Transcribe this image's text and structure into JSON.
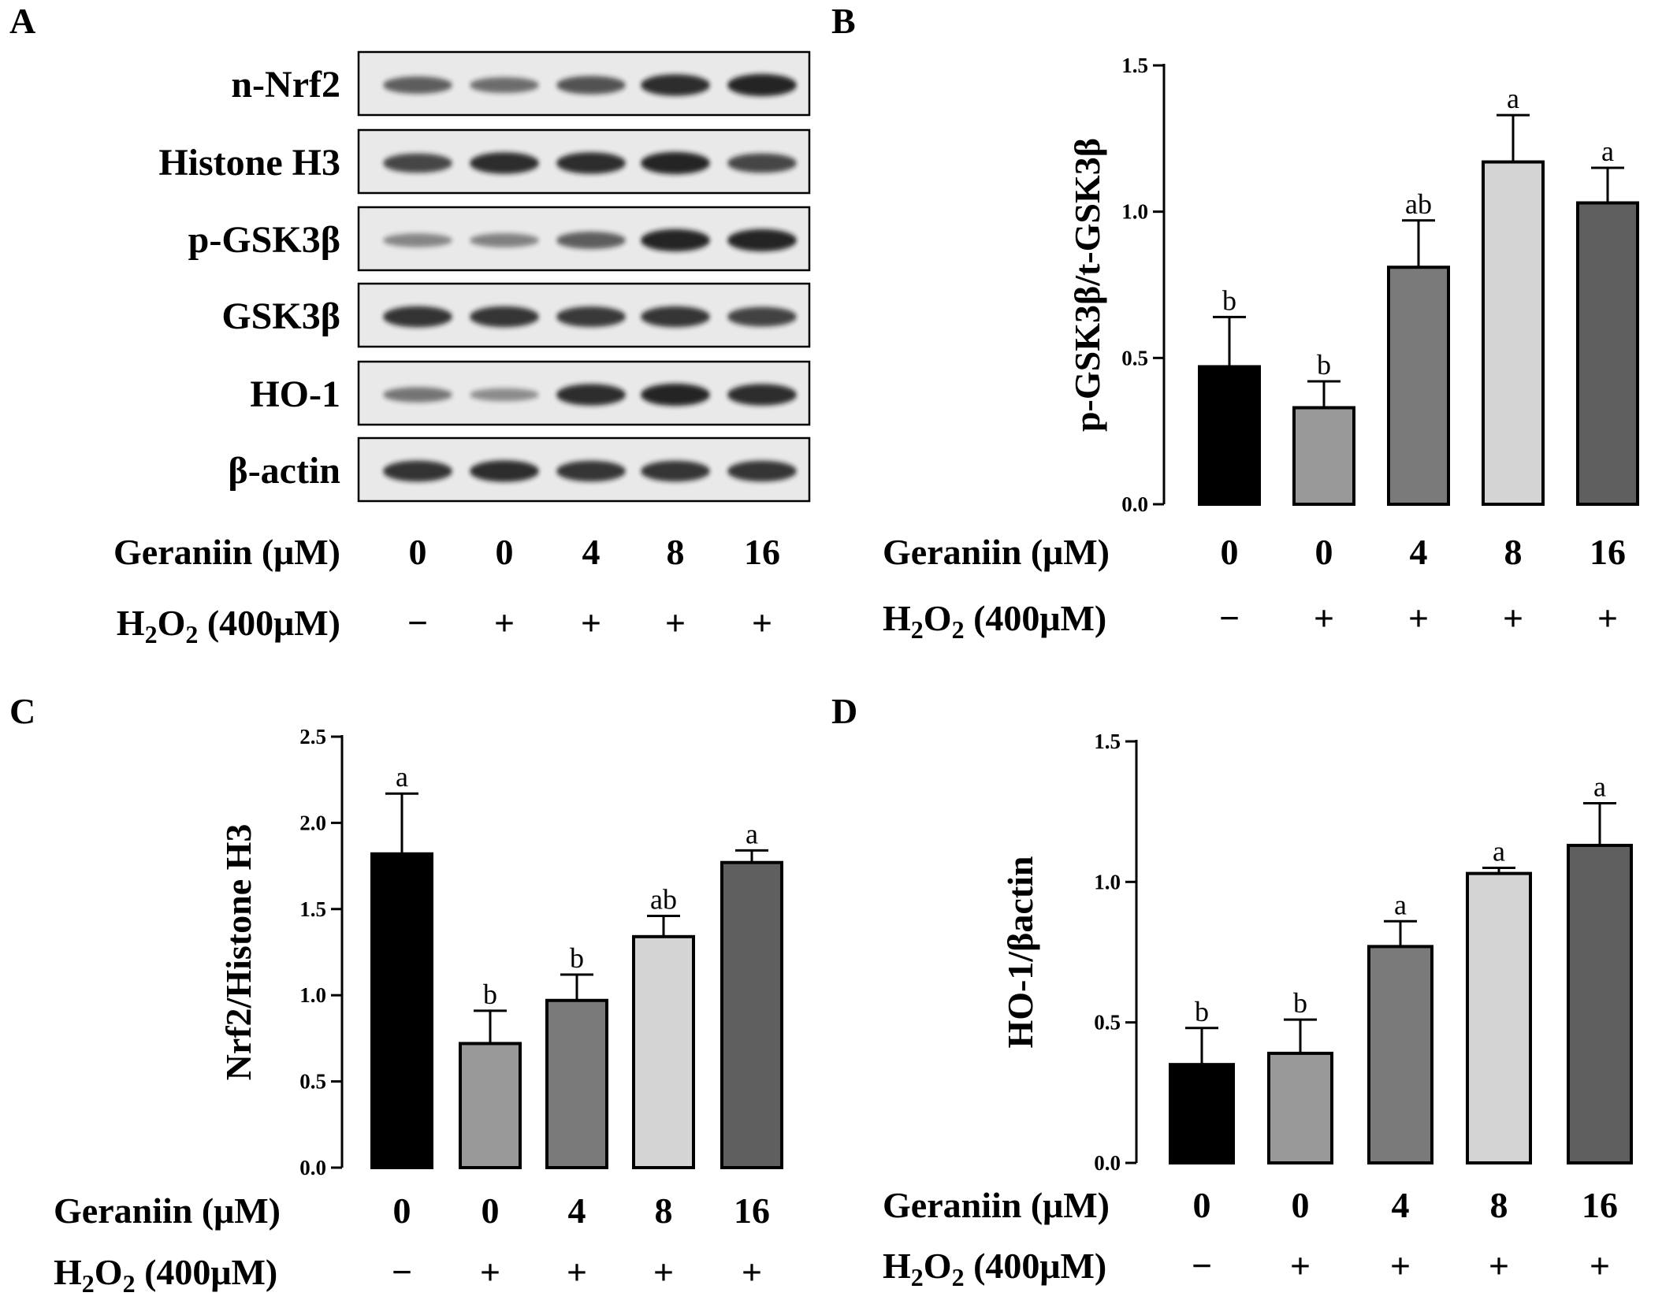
{
  "colors": {
    "bar_fills": [
      "#000000",
      "#999999",
      "#7a7a7a",
      "#d4d4d4",
      "#5f5f5f"
    ],
    "bar_stroke": "#000000",
    "blot_background": "#e9e9e9",
    "band": "#141414"
  },
  "panel_a": {
    "letter": "A",
    "bands": [
      "n-Nrf2",
      "Histone H3",
      "p-GSK3β",
      "GSK3β",
      "HO-1",
      "β-actin"
    ],
    "band_intensities": [
      [
        0.55,
        0.45,
        0.62,
        0.85,
        0.9
      ],
      [
        0.7,
        0.85,
        0.85,
        0.9,
        0.7
      ],
      [
        0.3,
        0.32,
        0.55,
        0.9,
        0.9
      ],
      [
        0.82,
        0.8,
        0.78,
        0.8,
        0.72
      ],
      [
        0.4,
        0.25,
        0.85,
        0.9,
        0.85
      ],
      [
        0.82,
        0.85,
        0.8,
        0.8,
        0.8
      ]
    ],
    "geraniin_label": "Geraniin (μM)",
    "h2o2_label": "H",
    "h2o2_sub1": "2",
    "h2o2_o": "O",
    "h2o2_sub2": "2",
    "h2o2_tail": " (400μM)",
    "geraniin_values": [
      "0",
      "0",
      "4",
      "8",
      "16"
    ],
    "h2o2_values": [
      "−",
      "+",
      "+",
      "+",
      "+"
    ]
  },
  "chart_data": [
    {
      "panel": "B",
      "type": "bar",
      "title": "",
      "ylabel": "p-GSK3β/t-GSK3β",
      "ylim": [
        0,
        1.5
      ],
      "yticks": [
        "0.0",
        "0.5",
        "1.0",
        "1.5"
      ],
      "values": [
        0.47,
        0.33,
        0.81,
        1.17,
        1.03
      ],
      "errors": [
        0.17,
        0.09,
        0.16,
        0.16,
        0.12
      ],
      "significance": [
        "b",
        "b",
        "ab",
        "a",
        "a"
      ],
      "geraniin_label": "Geraniin (μM)",
      "geraniin_values": [
        "0",
        "0",
        "4",
        "8",
        "16"
      ],
      "h2o2_label": "H",
      "h2o2_sub1": "2",
      "h2o2_o": "O",
      "h2o2_sub2": "2",
      "h2o2_tail": " (400μM)",
      "h2o2_values": [
        "−",
        "+",
        "+",
        "+",
        "+"
      ]
    },
    {
      "panel": "C",
      "type": "bar",
      "title": "",
      "ylabel": "Nrf2/Histone H3",
      "ylim": [
        0,
        2.5
      ],
      "yticks": [
        "0.0",
        "0.5",
        "1.0",
        "1.5",
        "2.0",
        "2.5"
      ],
      "values": [
        1.82,
        0.72,
        0.97,
        1.34,
        1.77
      ],
      "errors": [
        0.35,
        0.19,
        0.15,
        0.12,
        0.07
      ],
      "significance": [
        "a",
        "b",
        "b",
        "ab",
        "a"
      ],
      "geraniin_label": "Geraniin (μM)",
      "geraniin_values": [
        "0",
        "0",
        "4",
        "8",
        "16"
      ],
      "h2o2_label": "H",
      "h2o2_sub1": "2",
      "h2o2_o": "O",
      "h2o2_sub2": "2",
      "h2o2_tail": " (400μM)",
      "h2o2_values": [
        "−",
        "+",
        "+",
        "+",
        "+"
      ]
    },
    {
      "panel": "D",
      "type": "bar",
      "title": "",
      "ylabel": "HO-1/βactin",
      "ylim": [
        0,
        1.5
      ],
      "yticks": [
        "0.0",
        "0.5",
        "1.0",
        "1.5"
      ],
      "values": [
        0.35,
        0.39,
        0.77,
        1.03,
        1.13
      ],
      "errors": [
        0.13,
        0.12,
        0.09,
        0.02,
        0.15
      ],
      "significance": [
        "b",
        "b",
        "a",
        "a",
        "a"
      ],
      "geraniin_label": "Geraniin (μM)",
      "geraniin_values": [
        "0",
        "0",
        "4",
        "8",
        "16"
      ],
      "h2o2_label": "H",
      "h2o2_sub1": "2",
      "h2o2_o": "O",
      "h2o2_sub2": "2",
      "h2o2_tail": " (400μM)",
      "h2o2_values": [
        "−",
        "+",
        "+",
        "+",
        "+"
      ]
    }
  ]
}
